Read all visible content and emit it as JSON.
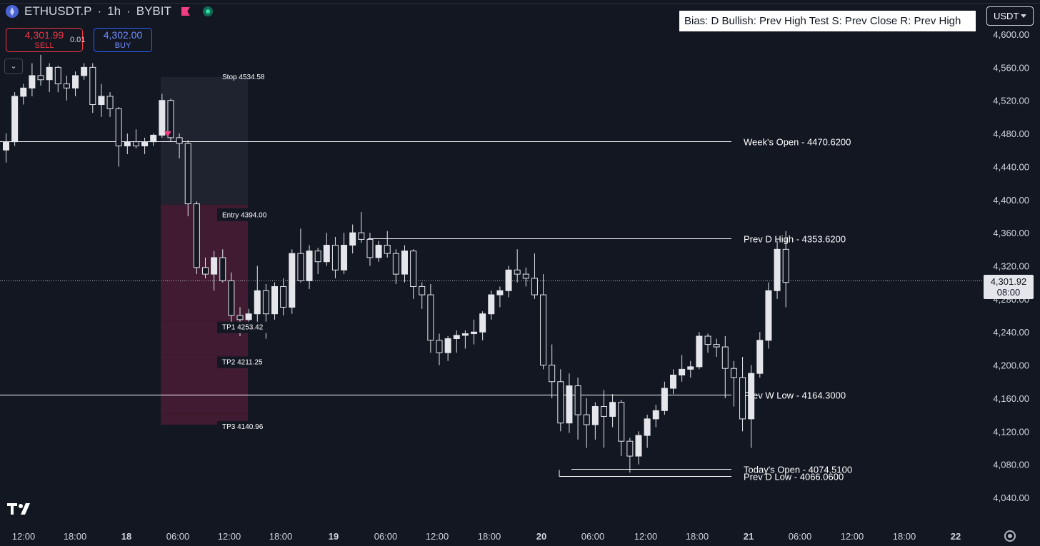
{
  "header": {
    "symbol": "ETHUSDT.P",
    "sep1": "·",
    "interval": "1h",
    "sep2": "·",
    "exchange": "BYBIT",
    "symbol_icon": "ethereum-icon",
    "flag_icon": "flag-icon",
    "status_icon": "market-open-dot-icon",
    "status_color": "#2ee09e"
  },
  "trade": {
    "sell_price": "4,301.99",
    "sell_label": "SELL",
    "qty": "0.01",
    "buy_price": "4,302.00",
    "buy_label": "BUY"
  },
  "collapse_icon": "chevron-down-icon",
  "bias_text": "Bias: D  Bullish: Prev High Test  S: Prev Close  R: Prev High",
  "currency": "USDT",
  "last_price": {
    "value": "4,301.92",
    "countdown": "08:00"
  },
  "colors": {
    "background": "#131722",
    "candle": "#e4e6eb",
    "level_line": "#ffffff",
    "stop_zone": "#2a2e3b",
    "target_zone": "#4a1c34",
    "entry_marker": "#f23d82"
  },
  "chart_data": {
    "type": "candlestick",
    "symbol": "ETHUSDT.P",
    "interval": "1h",
    "exchange": "BYBIT",
    "ylim": [
      4020,
      4610
    ],
    "y_ticks": [
      4600,
      4560,
      4520,
      4480,
      4440,
      4400,
      4360,
      4320,
      4280,
      4240,
      4200,
      4160,
      4120,
      4080,
      4040
    ],
    "y_tick_labels": [
      "4,600.00",
      "4,560.00",
      "4,520.00",
      "4,480.00",
      "4,440.00",
      "4,400.00",
      "4,360.00",
      "4,320.00",
      "4,280.00",
      "4,240.00",
      "4,200.00",
      "4,160.00",
      "4,120.00",
      "4,080.00",
      "4,040.00"
    ],
    "x_tick_labels": [
      "12:00",
      "18:00",
      "18",
      "06:00",
      "12:00",
      "18:00",
      "19",
      "06:00",
      "12:00",
      "18:00",
      "20",
      "06:00",
      "12:00",
      "18:00",
      "21",
      "06:00",
      "12:00",
      "18:00",
      "22"
    ],
    "candles": [
      [
        4460,
        4480,
        4445,
        4470
      ],
      [
        4470,
        4530,
        4465,
        4525
      ],
      [
        4525,
        4540,
        4515,
        4535
      ],
      [
        4535,
        4565,
        4525,
        4550
      ],
      [
        4550,
        4575,
        4538,
        4545
      ],
      [
        4545,
        4565,
        4530,
        4560
      ],
      [
        4560,
        4562,
        4530,
        4540
      ],
      [
        4540,
        4550,
        4520,
        4535
      ],
      [
        4535,
        4555,
        4525,
        4550
      ],
      [
        4550,
        4565,
        4545,
        4560
      ],
      [
        4560,
        4565,
        4505,
        4515
      ],
      [
        4515,
        4540,
        4500,
        4525
      ],
      [
        4525,
        4530,
        4500,
        4510
      ],
      [
        4510,
        4512,
        4440,
        4465
      ],
      [
        4465,
        4480,
        4455,
        4470
      ],
      [
        4470,
        4485,
        4462,
        4465
      ],
      [
        4465,
        4475,
        4455,
        4470
      ],
      [
        4470,
        4480,
        4465,
        4478
      ],
      [
        4478,
        4528,
        4475,
        4520
      ],
      [
        4520,
        4522,
        4470,
        4475
      ],
      [
        4475,
        4480,
        4450,
        4468
      ],
      [
        4468,
        4472,
        4380,
        4395
      ],
      [
        4395,
        4398,
        4310,
        4318
      ],
      [
        4318,
        4330,
        4305,
        4310
      ],
      [
        4310,
        4338,
        4290,
        4330
      ],
      [
        4330,
        4340,
        4300,
        4302
      ],
      [
        4302,
        4312,
        4250,
        4260
      ],
      [
        4260,
        4270,
        4235,
        4255
      ],
      [
        4255,
        4268,
        4245,
        4262
      ],
      [
        4262,
        4320,
        4242,
        4290
      ],
      [
        4290,
        4298,
        4232,
        4262
      ],
      [
        4262,
        4300,
        4255,
        4295
      ],
      [
        4295,
        4305,
        4260,
        4270
      ],
      [
        4270,
        4340,
        4262,
        4335
      ],
      [
        4335,
        4365,
        4300,
        4302
      ],
      [
        4302,
        4345,
        4292,
        4338
      ],
      [
        4338,
        4342,
        4310,
        4325
      ],
      [
        4325,
        4360,
        4320,
        4345
      ],
      [
        4345,
        4355,
        4305,
        4315
      ],
      [
        4315,
        4360,
        4310,
        4345
      ],
      [
        4345,
        4370,
        4335,
        4360
      ],
      [
        4360,
        4385,
        4348,
        4352
      ],
      [
        4352,
        4360,
        4320,
        4330
      ],
      [
        4330,
        4350,
        4325,
        4345
      ],
      [
        4345,
        4362,
        4330,
        4335
      ],
      [
        4335,
        4340,
        4298,
        4310
      ],
      [
        4310,
        4345,
        4300,
        4338
      ],
      [
        4338,
        4340,
        4280,
        4295
      ],
      [
        4295,
        4300,
        4268,
        4285
      ],
      [
        4285,
        4298,
        4215,
        4230
      ],
      [
        4230,
        4238,
        4200,
        4215
      ],
      [
        4215,
        4235,
        4205,
        4232
      ],
      [
        4232,
        4242,
        4215,
        4236
      ],
      [
        4236,
        4242,
        4220,
        4238
      ],
      [
        4238,
        4255,
        4225,
        4240
      ],
      [
        4240,
        4265,
        4230,
        4262
      ],
      [
        4262,
        4290,
        4255,
        4285
      ],
      [
        4285,
        4295,
        4270,
        4290
      ],
      [
        4290,
        4320,
        4282,
        4315
      ],
      [
        4315,
        4340,
        4300,
        4310
      ],
      [
        4310,
        4318,
        4295,
        4305
      ],
      [
        4305,
        4335,
        4280,
        4285
      ],
      [
        4285,
        4310,
        4195,
        4200
      ],
      [
        4200,
        4225,
        4160,
        4180
      ],
      [
        4180,
        4195,
        4120,
        4130
      ],
      [
        4130,
        4190,
        4118,
        4175
      ],
      [
        4175,
        4185,
        4110,
        4140
      ],
      [
        4140,
        4160,
        4100,
        4128
      ],
      [
        4128,
        4155,
        4110,
        4150
      ],
      [
        4150,
        4170,
        4100,
        4138
      ],
      [
        4138,
        4165,
        4125,
        4155
      ],
      [
        4155,
        4158,
        4090,
        4108
      ],
      [
        4108,
        4112,
        4070,
        4090
      ],
      [
        4090,
        4120,
        4080,
        4115
      ],
      [
        4115,
        4140,
        4100,
        4135
      ],
      [
        4135,
        4152,
        4125,
        4145
      ],
      [
        4145,
        4180,
        4140,
        4172
      ],
      [
        4172,
        4195,
        4165,
        4188
      ],
      [
        4188,
        4212,
        4180,
        4195
      ],
      [
        4195,
        4205,
        4185,
        4198
      ],
      [
        4198,
        4240,
        4195,
        4235
      ],
      [
        4235,
        4238,
        4215,
        4225
      ],
      [
        4225,
        4232,
        4210,
        4222
      ],
      [
        4222,
        4235,
        4160,
        4196
      ],
      [
        4196,
        4205,
        4150,
        4185
      ],
      [
        4185,
        4210,
        4120,
        4135
      ],
      [
        4135,
        4200,
        4100,
        4190
      ],
      [
        4190,
        4240,
        4185,
        4230
      ],
      [
        4230,
        4300,
        4220,
        4290
      ],
      [
        4290,
        4350,
        4280,
        4340
      ],
      [
        4340,
        4362,
        4270,
        4300
      ]
    ],
    "levels": [
      {
        "label": "Week's Open",
        "value": "4470.6200"
      },
      {
        "label": "Prev D High",
        "value": "4353.6200"
      },
      {
        "label": "Prev W Low",
        "value": "4164.3000"
      },
      {
        "label": "Today's Open",
        "value": "4074.5100"
      },
      {
        "label": "Prev D Low",
        "value": "4066.0600"
      }
    ],
    "position": {
      "side": "short",
      "stop": {
        "label": "Stop",
        "value": "4534.58"
      },
      "entry": {
        "label": "Entry",
        "value": "4394.00"
      },
      "targets": [
        {
          "label": "TP1",
          "value": "4253.42"
        },
        {
          "label": "TP2",
          "value": "4211.25"
        },
        {
          "label": "TP3",
          "value": "4140.96"
        }
      ]
    },
    "last_price": 4301.92
  },
  "footer": {
    "logo": "tradingview-logo",
    "settings_icon": "settings-gear-icon"
  }
}
